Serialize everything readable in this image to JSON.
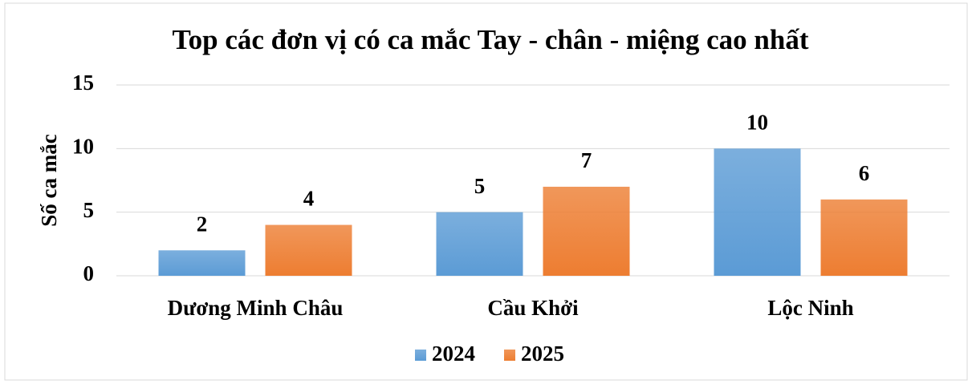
{
  "chart_data": {
    "type": "bar",
    "title": "Top các đơn vị có ca mắc Tay - chân - miệng cao nhất",
    "y_label": "Số ca mắc",
    "categories": [
      "Dương Minh Châu",
      "Cầu Khởi",
      "Lộc Ninh"
    ],
    "series": [
      {
        "name": "2024",
        "color": "#5b9bd5",
        "values": [
          2,
          5,
          10
        ]
      },
      {
        "name": "2025",
        "color": "#ed7d31",
        "values": [
          4,
          7,
          6
        ]
      }
    ],
    "ylim": [
      0,
      15
    ],
    "yticks": [
      0,
      5,
      10,
      15
    ],
    "grid": true,
    "legend": "bottom"
  }
}
